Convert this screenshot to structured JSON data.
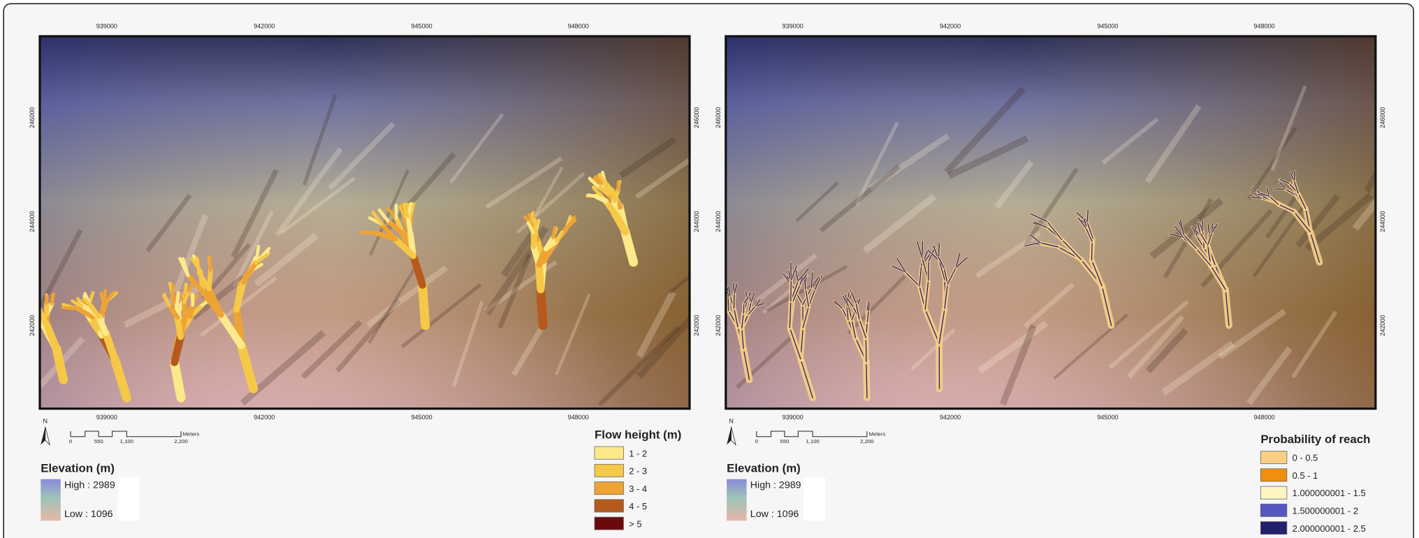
{
  "figure": {
    "panels": [
      {
        "x_labels": [
          "939000",
          "942000",
          "945000",
          "948000"
        ],
        "y_labels": [
          "246000",
          "244000",
          "242000"
        ],
        "north": "N",
        "scale_labels": [
          "0",
          "550",
          "1,100",
          "2,200"
        ],
        "scale_unit": "Meters",
        "elevation": {
          "title": "Elevation (m)",
          "high": "High : 2989",
          "low": "Low : 1096"
        },
        "legend": {
          "title": "Flow height (m)",
          "items": [
            {
              "label": "1 - 2",
              "color": "#fbe98a"
            },
            {
              "label": "2 - 3",
              "color": "#f6c847"
            },
            {
              "label": "3 - 4",
              "color": "#eea434"
            },
            {
              "label": "4 - 5",
              "color": "#b55a1c"
            },
            {
              "label": "> 5",
              "color": "#6b0a0a"
            }
          ]
        }
      },
      {
        "x_labels": [
          "939000",
          "942000",
          "945000",
          "948000"
        ],
        "y_labels": [
          "246000",
          "244000",
          "242000"
        ],
        "north": "N",
        "scale_labels": [
          "0",
          "550",
          "1,100",
          "2,200"
        ],
        "scale_unit": "Meters",
        "elevation": {
          "title": "Elevation (m)",
          "high": "High : 2989",
          "low": "Low : 1096"
        },
        "legend": {
          "title": "Probability of reach",
          "items": [
            {
              "label": "0 - 0.5",
              "color": "#f9cf85"
            },
            {
              "label": "0.5 - 1",
              "color": "#ef8e0f"
            },
            {
              "label": "1.000000001 - 1.5",
              "color": "#fdf6c3"
            },
            {
              "label": "1.500000001 - 2",
              "color": "#5757c0"
            },
            {
              "label": "2.000000001 - 2.5",
              "color": "#23206e"
            }
          ]
        }
      }
    ]
  }
}
